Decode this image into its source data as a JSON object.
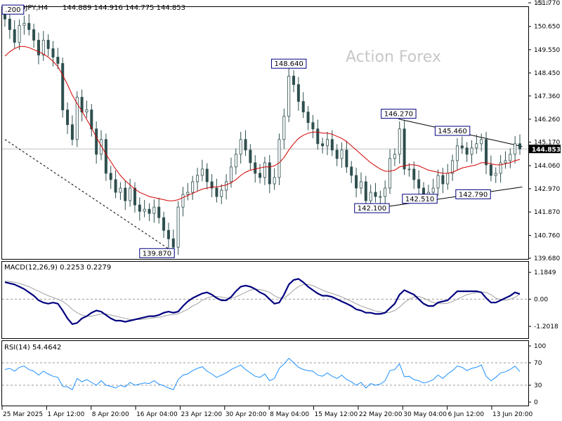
{
  "header": {
    "symbol": "USDJPY,H4",
    "ohlc": "144.889 144.916 144.775 144.853",
    "corner_label": "61.8"
  },
  "watermark": "Action Forex",
  "colors": {
    "background": "#ffffff",
    "candle": "#2f4f4f",
    "ma": "#d40000",
    "macd_main": "#00007f",
    "macd_signal": "#a0a0a0",
    "rsi": "#1e90ff",
    "label_border": "#000080",
    "price_tag_bg": "#000000",
    "grid_dash": "#9a9a9a"
  },
  "chart_data": [
    {
      "type": "candlestick",
      "name": "price",
      "y_ticks": [
        "151.770",
        "150.650",
        "149.550",
        "148.450",
        "147.360",
        "146.260",
        "145.170",
        "144.060",
        "142.970",
        "141.870",
        "140.760",
        "139.680"
      ],
      "ylim": [
        139.68,
        151.77
      ],
      "last_price": "144.853",
      "last_price_value": 144.853,
      "annotations": [
        {
          "label": ".200",
          "x": 0.5,
          "y": 151.2
        },
        {
          "label": "139.870",
          "x": 35.5,
          "y": 139.87
        },
        {
          "label": "148.640",
          "x": 59,
          "y": 148.64
        },
        {
          "label": "142.100",
          "x": 78.7,
          "y": 142.1
        },
        {
          "label": "146.270",
          "x": 81.8,
          "y": 146.27
        },
        {
          "label": "142.510",
          "x": 86.2,
          "y": 142.51
        },
        {
          "label": "145.460",
          "x": 93,
          "y": 145.46
        },
        {
          "label": "142.790",
          "x": 97.3,
          "y": 142.79
        }
      ],
      "trendlines": [
        {
          "style": "dashed",
          "from": [
            0,
            145.3
          ],
          "to": [
            35.5,
            139.9
          ]
        },
        {
          "style": "solid",
          "from": [
            81.8,
            146.27
          ],
          "to": [
            107.5,
            144.97
          ]
        },
        {
          "style": "solid",
          "from": [
            78.7,
            142.1
          ],
          "to": [
            107.5,
            143.05
          ]
        }
      ],
      "closes": [
        151.0,
        150.5,
        149.9,
        150.7,
        150.8,
        150.5,
        150.0,
        149.3,
        150.0,
        149.6,
        149.2,
        148.9,
        146.7,
        146.0,
        145.3,
        147.3,
        146.6,
        146.7,
        145.8,
        144.6,
        145.3,
        143.7,
        143.4,
        142.8,
        143.0,
        142.4,
        143.0,
        142.2,
        141.9,
        142.0,
        141.8,
        142.1,
        141.6,
        141.0,
        140.6,
        140.2,
        142.1,
        142.7,
        142.8,
        143.3,
        143.6,
        143.9,
        143.3,
        143.0,
        142.6,
        142.9,
        143.3,
        144.0,
        144.6,
        145.3,
        144.8,
        144.2,
        143.7,
        143.5,
        144.2,
        143.2,
        143.5,
        145.3,
        146.4,
        148.3,
        147.9,
        147.1,
        146.6,
        146.1,
        145.8,
        145.1,
        145.0,
        145.3,
        144.8,
        144.4,
        144.8,
        144.0,
        143.6,
        143.0,
        143.3,
        142.4,
        142.8,
        142.6,
        142.6,
        143.0,
        144.4,
        144.6,
        145.8,
        143.9,
        143.9,
        143.4,
        143.0,
        142.7,
        142.8,
        143.0,
        143.6,
        143.2,
        143.7,
        144.3,
        145.0,
        144.9,
        144.6,
        144.9,
        145.1,
        145.3,
        144.1,
        143.6,
        143.7,
        144.2,
        144.3,
        144.6,
        145.1,
        144.853
      ],
      "ma": [
        149.25,
        149.45,
        149.6,
        149.7,
        149.7,
        149.65,
        149.55,
        149.45,
        149.35,
        149.2,
        149.0,
        148.75,
        148.35,
        147.9,
        147.4,
        147.0,
        146.65,
        146.25,
        145.85,
        145.4,
        145.0,
        144.6,
        144.25,
        143.9,
        143.6,
        143.35,
        143.15,
        142.95,
        142.8,
        142.7,
        142.6,
        142.55,
        142.5,
        142.45,
        142.4,
        142.4,
        142.45,
        142.55,
        142.65,
        142.75,
        142.85,
        142.95,
        143.0,
        143.05,
        143.05,
        143.1,
        143.15,
        143.25,
        143.4,
        143.6,
        143.75,
        143.85,
        143.9,
        143.95,
        144.0,
        144.0,
        144.05,
        144.2,
        144.45,
        144.8,
        145.1,
        145.35,
        145.5,
        145.6,
        145.65,
        145.65,
        145.6,
        145.6,
        145.55,
        145.45,
        145.35,
        145.2,
        145.0,
        144.8,
        144.6,
        144.4,
        144.2,
        144.05,
        143.9,
        143.8,
        143.8,
        143.85,
        144.0,
        144.05,
        144.1,
        144.1,
        144.05,
        143.95,
        143.85,
        143.8,
        143.75,
        143.7,
        143.7,
        143.75,
        143.85,
        143.95,
        144.0,
        144.05,
        144.1,
        144.2,
        144.2,
        144.15,
        144.1,
        144.1,
        144.15,
        144.2,
        144.3,
        144.35
      ]
    },
    {
      "type": "line",
      "name": "macd",
      "header": "MACD(12,26,9) 0.2253 0.2279",
      "y_ticks": [
        "1.1849",
        "0.00",
        "-1.2018"
      ],
      "ylim": [
        -1.6,
        1.5
      ],
      "main": [
        0.75,
        0.7,
        0.65,
        0.55,
        0.45,
        0.3,
        0.15,
        -0.05,
        -0.15,
        -0.2,
        -0.15,
        -0.2,
        -0.5,
        -0.85,
        -1.1,
        -1.05,
        -0.85,
        -0.75,
        -0.6,
        -0.5,
        -0.55,
        -0.7,
        -0.85,
        -0.95,
        -0.95,
        -1.0,
        -0.95,
        -0.9,
        -0.85,
        -0.8,
        -0.75,
        -0.75,
        -0.7,
        -0.6,
        -0.55,
        -0.6,
        -0.55,
        -0.3,
        -0.1,
        0.05,
        0.15,
        0.25,
        0.3,
        0.2,
        0.05,
        -0.05,
        -0.05,
        0.1,
        0.35,
        0.55,
        0.6,
        0.55,
        0.45,
        0.3,
        0.2,
        0.0,
        -0.2,
        -0.15,
        0.2,
        0.65,
        0.85,
        0.9,
        0.75,
        0.55,
        0.4,
        0.25,
        0.15,
        0.15,
        0.1,
        0.0,
        -0.1,
        -0.2,
        -0.3,
        -0.45,
        -0.5,
        -0.6,
        -0.6,
        -0.65,
        -0.65,
        -0.6,
        -0.4,
        -0.2,
        0.2,
        0.4,
        0.3,
        0.2,
        0.0,
        -0.2,
        -0.3,
        -0.3,
        -0.15,
        -0.1,
        -0.05,
        0.15,
        0.35,
        0.35,
        0.35,
        0.35,
        0.35,
        0.3,
        0.05,
        -0.15,
        -0.15,
        -0.05,
        0.05,
        0.15,
        0.3,
        0.2253
      ],
      "signal": [
        0.8,
        0.78,
        0.75,
        0.7,
        0.63,
        0.55,
        0.45,
        0.35,
        0.25,
        0.15,
        0.08,
        0.0,
        -0.1,
        -0.25,
        -0.45,
        -0.6,
        -0.7,
        -0.75,
        -0.75,
        -0.7,
        -0.65,
        -0.65,
        -0.7,
        -0.75,
        -0.8,
        -0.85,
        -0.9,
        -0.9,
        -0.9,
        -0.88,
        -0.85,
        -0.82,
        -0.8,
        -0.75,
        -0.7,
        -0.68,
        -0.65,
        -0.55,
        -0.45,
        -0.3,
        -0.2,
        -0.05,
        0.05,
        0.12,
        0.12,
        0.1,
        0.05,
        0.05,
        0.1,
        0.2,
        0.3,
        0.4,
        0.45,
        0.42,
        0.38,
        0.3,
        0.15,
        0.05,
        0.05,
        0.2,
        0.4,
        0.55,
        0.65,
        0.65,
        0.6,
        0.5,
        0.4,
        0.32,
        0.25,
        0.18,
        0.1,
        0.0,
        -0.1,
        -0.2,
        -0.3,
        -0.38,
        -0.45,
        -0.52,
        -0.56,
        -0.6,
        -0.58,
        -0.5,
        -0.35,
        -0.15,
        0.0,
        0.1,
        0.12,
        0.05,
        -0.05,
        -0.15,
        -0.2,
        -0.2,
        -0.18,
        -0.1,
        0.0,
        0.1,
        0.2,
        0.25,
        0.3,
        0.32,
        0.3,
        0.2,
        0.05,
        -0.02,
        -0.05,
        0.0,
        0.08,
        0.2279
      ]
    },
    {
      "type": "line",
      "name": "rsi",
      "header": "RSI(14) 54.4642",
      "y_ticks": [
        "100",
        "70",
        "30",
        "0"
      ],
      "levels": [
        70,
        30
      ],
      "ylim": [
        0,
        100
      ],
      "values": [
        58,
        60,
        55,
        62,
        64,
        58,
        55,
        48,
        55,
        50,
        46,
        44,
        28,
        27,
        22,
        42,
        36,
        40,
        35,
        30,
        38,
        30,
        28,
        25,
        30,
        27,
        35,
        30,
        32,
        34,
        33,
        38,
        32,
        29,
        25,
        22,
        40,
        48,
        50,
        56,
        60,
        63,
        55,
        50,
        44,
        48,
        52,
        58,
        62,
        66,
        58,
        52,
        46,
        44,
        50,
        38,
        42,
        60,
        68,
        78,
        70,
        62,
        58,
        56,
        55,
        48,
        46,
        52,
        46,
        42,
        48,
        40,
        36,
        30,
        35,
        25,
        33,
        30,
        32,
        38,
        56,
        58,
        68,
        45,
        46,
        40,
        38,
        34,
        36,
        40,
        48,
        42,
        50,
        56,
        64,
        62,
        56,
        60,
        62,
        66,
        46,
        38,
        44,
        52,
        54,
        58,
        64,
        54.4642
      ]
    }
  ],
  "x_axis": [
    "25 Mar 2025",
    "1 Apr 12:00",
    "8 Apr 20:00",
    "16 Apr 04:00",
    "23 Apr 12:00",
    "30 Apr 20:00",
    "8 May 04:00",
    "15 May 12:00",
    "22 May 20:00",
    "30 May 04:00",
    "6 Jun 12:00",
    "13 Jun 20:00"
  ]
}
